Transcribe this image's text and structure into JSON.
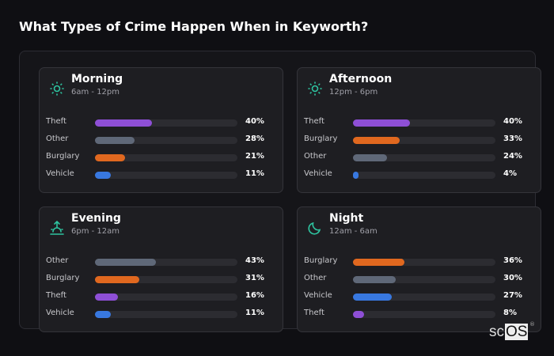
{
  "title": "What Types of Crime Happen When in Keyworth?",
  "colors": {
    "Theft": "#8e4fd6",
    "Other": "#5f6878",
    "Burglary": "#e0681f",
    "Vehicle": "#3878e0",
    "accent": "#2ec4a0"
  },
  "chart_data": {
    "type": "bar",
    "orientation": "horizontal",
    "xlim": [
      0,
      100
    ],
    "unit": "%",
    "panels": [
      {
        "name": "Morning",
        "range": "6am - 12pm",
        "icon": "sun-icon",
        "categories": [
          "Theft",
          "Other",
          "Burglary",
          "Vehicle"
        ],
        "values": [
          40,
          28,
          21,
          11
        ],
        "labels": [
          "40%",
          "28%",
          "21%",
          "11%"
        ]
      },
      {
        "name": "Afternoon",
        "range": "12pm - 6pm",
        "icon": "sun-icon",
        "categories": [
          "Theft",
          "Burglary",
          "Other",
          "Vehicle"
        ],
        "values": [
          40,
          33,
          24,
          4
        ],
        "labels": [
          "40%",
          "33%",
          "24%",
          "4%"
        ]
      },
      {
        "name": "Evening",
        "range": "6pm - 12am",
        "icon": "sunset-icon",
        "categories": [
          "Other",
          "Burglary",
          "Theft",
          "Vehicle"
        ],
        "values": [
          43,
          31,
          16,
          11
        ],
        "labels": [
          "43%",
          "31%",
          "16%",
          "11%"
        ]
      },
      {
        "name": "Night",
        "range": "12am - 6am",
        "icon": "moon-icon",
        "categories": [
          "Burglary",
          "Other",
          "Vehicle",
          "Theft"
        ],
        "values": [
          36,
          30,
          27,
          8
        ],
        "labels": [
          "36%",
          "30%",
          "27%",
          "8%"
        ]
      }
    ]
  },
  "logo": {
    "text_a": "sc",
    "text_b": "OS",
    "reg": "®"
  }
}
